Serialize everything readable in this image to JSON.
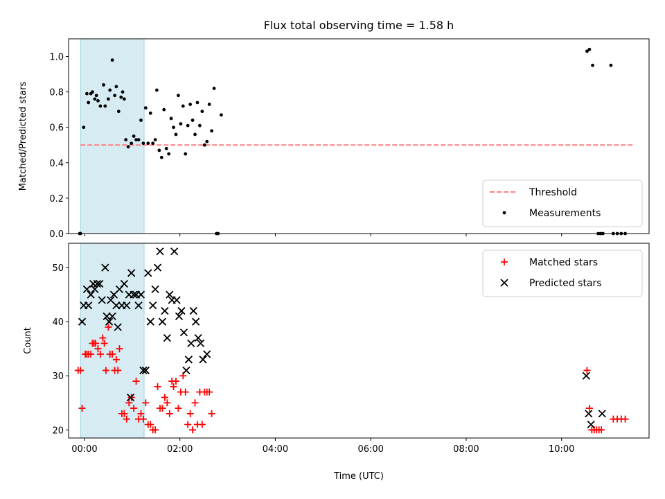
{
  "chart_data": [
    {
      "type": "scatter",
      "title": "Flux total observing time = 1.58 h",
      "ylabel": "Matched/Predicted stars",
      "xlabel": "",
      "xlim": [
        "-00:20",
        "11:50"
      ],
      "ylim": [
        0,
        1.1
      ],
      "x_ticks": [
        "00:00",
        "02:00",
        "04:00",
        "06:00",
        "08:00",
        "10:00"
      ],
      "y_ticks": [
        "0.0",
        "0.2",
        "0.4",
        "0.6",
        "0.8",
        "1.0"
      ],
      "grid": false,
      "legend": "bottom-right",
      "highlight_span": {
        "from": "-00:05",
        "to": "01:15",
        "color": "#add8e6"
      },
      "threshold": {
        "name": "Threshold",
        "y": 0.5,
        "x_from": "-00:05",
        "x_to": "11:30",
        "color": "#ff7f7f",
        "style": "dashed"
      },
      "series": [
        {
          "name": "Measurements",
          "marker": "dot",
          "color": "#000000",
          "points": [
            [
              "-00:06",
              0.0
            ],
            [
              "-00:05",
              0.0
            ],
            [
              "-00:01",
              0.6
            ],
            [
              "00:03",
              0.79
            ],
            [
              "00:05",
              0.74
            ],
            [
              "00:08",
              0.79
            ],
            [
              "00:10",
              0.8
            ],
            [
              "00:13",
              0.76
            ],
            [
              "00:15",
              0.78
            ],
            [
              "00:17",
              0.75
            ],
            [
              "00:20",
              0.72
            ],
            [
              "00:24",
              0.84
            ],
            [
              "00:26",
              0.72
            ],
            [
              "00:30",
              0.76
            ],
            [
              "00:32",
              0.81
            ],
            [
              "00:35",
              0.98
            ],
            [
              "00:38",
              0.78
            ],
            [
              "00:40",
              0.83
            ],
            [
              "00:43",
              0.69
            ],
            [
              "00:46",
              0.77
            ],
            [
              "00:48",
              0.8
            ],
            [
              "00:50",
              0.76
            ],
            [
              "00:52",
              0.53
            ],
            [
              "00:55",
              0.49
            ],
            [
              "00:59",
              0.51
            ],
            [
              "01:02",
              0.55
            ],
            [
              "01:05",
              0.53
            ],
            [
              "01:08",
              0.53
            ],
            [
              "01:11",
              0.64
            ],
            [
              "01:14",
              0.51
            ],
            [
              "01:17",
              0.71
            ],
            [
              "01:20",
              0.51
            ],
            [
              "01:23",
              0.68
            ],
            [
              "01:26",
              0.51
            ],
            [
              "01:29",
              0.53
            ],
            [
              "01:31",
              0.81
            ],
            [
              "01:34",
              0.47
            ],
            [
              "01:37",
              0.43
            ],
            [
              "01:40",
              0.7
            ],
            [
              "01:43",
              0.48
            ],
            [
              "01:46",
              0.45
            ],
            [
              "01:49",
              0.65
            ],
            [
              "01:52",
              0.6
            ],
            [
              "01:55",
              0.56
            ],
            [
              "01:58",
              0.78
            ],
            [
              "02:01",
              0.62
            ],
            [
              "02:04",
              0.72
            ],
            [
              "02:07",
              0.45
            ],
            [
              "02:10",
              0.61
            ],
            [
              "02:13",
              0.73
            ],
            [
              "02:16",
              0.64
            ],
            [
              "02:19",
              0.56
            ],
            [
              "02:22",
              0.74
            ],
            [
              "02:25",
              0.61
            ],
            [
              "02:28",
              0.69
            ],
            [
              "02:31",
              0.5
            ],
            [
              "02:34",
              0.52
            ],
            [
              "02:37",
              0.73
            ],
            [
              "02:40",
              0.58
            ],
            [
              "02:43",
              0.82
            ],
            [
              "02:46",
              0.0
            ],
            [
              "02:48",
              0.0
            ],
            [
              "02:52",
              0.67
            ],
            [
              "10:32",
              1.03
            ],
            [
              "10:35",
              1.04
            ],
            [
              "10:39",
              0.95
            ],
            [
              "10:46",
              0.0
            ],
            [
              "10:49",
              0.0
            ],
            [
              "10:52",
              0.0
            ],
            [
              "11:02",
              0.95
            ],
            [
              "11:05",
              0.0
            ],
            [
              "11:10",
              0.0
            ],
            [
              "11:15",
              0.0
            ],
            [
              "11:20",
              0.0
            ]
          ]
        }
      ]
    },
    {
      "type": "scatter",
      "title": "",
      "ylabel": "Count",
      "xlabel": "Time (UTC)",
      "xlim": [
        "-00:20",
        "11:50"
      ],
      "ylim": [
        18.5,
        54.5
      ],
      "x_ticks": [
        "00:00",
        "02:00",
        "04:00",
        "06:00",
        "08:00",
        "10:00"
      ],
      "y_ticks": [
        "20",
        "30",
        "40",
        "50"
      ],
      "grid": false,
      "legend": "top-right",
      "highlight_span": {
        "from": "-00:05",
        "to": "01:15",
        "color": "#add8e6"
      },
      "series": [
        {
          "name": "Matched stars",
          "marker": "plus",
          "color": "#ff0000",
          "points": [
            [
              "-00:08",
              31
            ],
            [
              "-00:05",
              31
            ],
            [
              "-00:03",
              24
            ],
            [
              "00:01",
              34
            ],
            [
              "00:03",
              34
            ],
            [
              "00:05",
              34
            ],
            [
              "00:08",
              34
            ],
            [
              "00:10",
              36
            ],
            [
              "00:12",
              36
            ],
            [
              "00:14",
              36
            ],
            [
              "00:17",
              35
            ],
            [
              "00:20",
              34
            ],
            [
              "00:23",
              37
            ],
            [
              "00:25",
              36
            ],
            [
              "00:27",
              31
            ],
            [
              "00:30",
              39
            ],
            [
              "00:32",
              34
            ],
            [
              "00:35",
              34
            ],
            [
              "00:38",
              31
            ],
            [
              "00:40",
              33
            ],
            [
              "00:42",
              31
            ],
            [
              "00:44",
              35
            ],
            [
              "00:47",
              23
            ],
            [
              "00:50",
              23
            ],
            [
              "00:53",
              22
            ],
            [
              "00:56",
              25
            ],
            [
              "00:59",
              26
            ],
            [
              "01:02",
              24
            ],
            [
              "01:05",
              29
            ],
            [
              "01:08",
              22
            ],
            [
              "01:11",
              23
            ],
            [
              "01:14",
              22
            ],
            [
              "01:17",
              25
            ],
            [
              "01:20",
              21
            ],
            [
              "01:23",
              21
            ],
            [
              "01:26",
              20
            ],
            [
              "01:29",
              20
            ],
            [
              "01:32",
              28
            ],
            [
              "01:35",
              24
            ],
            [
              "01:38",
              24
            ],
            [
              "01:41",
              26
            ],
            [
              "01:44",
              25
            ],
            [
              "01:47",
              23
            ],
            [
              "01:50",
              29
            ],
            [
              "01:52",
              28
            ],
            [
              "01:55",
              29
            ],
            [
              "01:58",
              24
            ],
            [
              "02:01",
              27
            ],
            [
              "02:04",
              30
            ],
            [
              "02:07",
              27
            ],
            [
              "02:10",
              21
            ],
            [
              "02:13",
              23
            ],
            [
              "02:16",
              20
            ],
            [
              "02:19",
              25
            ],
            [
              "02:22",
              21
            ],
            [
              "02:25",
              27
            ],
            [
              "02:28",
              21
            ],
            [
              "02:31",
              27
            ],
            [
              "02:34",
              27
            ],
            [
              "02:37",
              27
            ],
            [
              "02:40",
              23
            ],
            [
              "10:32",
              31
            ],
            [
              "10:35",
              24
            ],
            [
              "10:38",
              20
            ],
            [
              "10:41",
              20
            ],
            [
              "10:44",
              20
            ],
            [
              "10:47",
              20
            ],
            [
              "10:50",
              20
            ],
            [
              "11:05",
              22
            ],
            [
              "11:10",
              22
            ],
            [
              "11:15",
              22
            ],
            [
              "11:20",
              22
            ]
          ]
        },
        {
          "name": "Predicted stars",
          "marker": "x",
          "color": "#000000",
          "points": [
            [
              "-00:03",
              40
            ],
            [
              "-00:01",
              43
            ],
            [
              "00:03",
              46
            ],
            [
              "00:05",
              43
            ],
            [
              "00:08",
              45
            ],
            [
              "00:11",
              47
            ],
            [
              "00:13",
              46
            ],
            [
              "00:16",
              47
            ],
            [
              "00:19",
              47
            ],
            [
              "00:22",
              44
            ],
            [
              "00:26",
              50
            ],
            [
              "00:28",
              41
            ],
            [
              "00:31",
              40
            ],
            [
              "00:33",
              44
            ],
            [
              "00:35",
              41
            ],
            [
              "00:37",
              45
            ],
            [
              "00:40",
              43
            ],
            [
              "00:42",
              39
            ],
            [
              "00:44",
              46
            ],
            [
              "00:47",
              43
            ],
            [
              "00:50",
              47
            ],
            [
              "00:53",
              43
            ],
            [
              "00:56",
              45
            ],
            [
              "00:59",
              49
            ],
            [
              "01:02",
              45
            ],
            [
              "01:05",
              45
            ],
            [
              "01:08",
              43
            ],
            [
              "01:11",
              45
            ],
            [
              "01:14",
              31
            ],
            [
              "01:17",
              31
            ],
            [
              "01:20",
              49
            ],
            [
              "01:23",
              40
            ],
            [
              "01:26",
              43
            ],
            [
              "01:29",
              46
            ],
            [
              "01:32",
              50
            ],
            [
              "01:35",
              53
            ],
            [
              "01:38",
              40
            ],
            [
              "01:41",
              42
            ],
            [
              "01:44",
              37
            ],
            [
              "01:47",
              45
            ],
            [
              "01:50",
              44
            ],
            [
              "01:53",
              53
            ],
            [
              "01:56",
              44
            ],
            [
              "01:59",
              41
            ],
            [
              "02:02",
              42
            ],
            [
              "02:05",
              38
            ],
            [
              "02:08",
              31
            ],
            [
              "02:11",
              33
            ],
            [
              "02:14",
              36
            ],
            [
              "02:17",
              42
            ],
            [
              "02:20",
              40
            ],
            [
              "02:23",
              37
            ],
            [
              "02:26",
              36
            ],
            [
              "02:29",
              33
            ],
            [
              "02:34",
              34
            ],
            [
              "00:58",
              26
            ],
            [
              "10:31",
              30
            ],
            [
              "10:34",
              23
            ],
            [
              "10:37",
              21
            ],
            [
              "10:51",
              23
            ]
          ]
        }
      ]
    }
  ]
}
